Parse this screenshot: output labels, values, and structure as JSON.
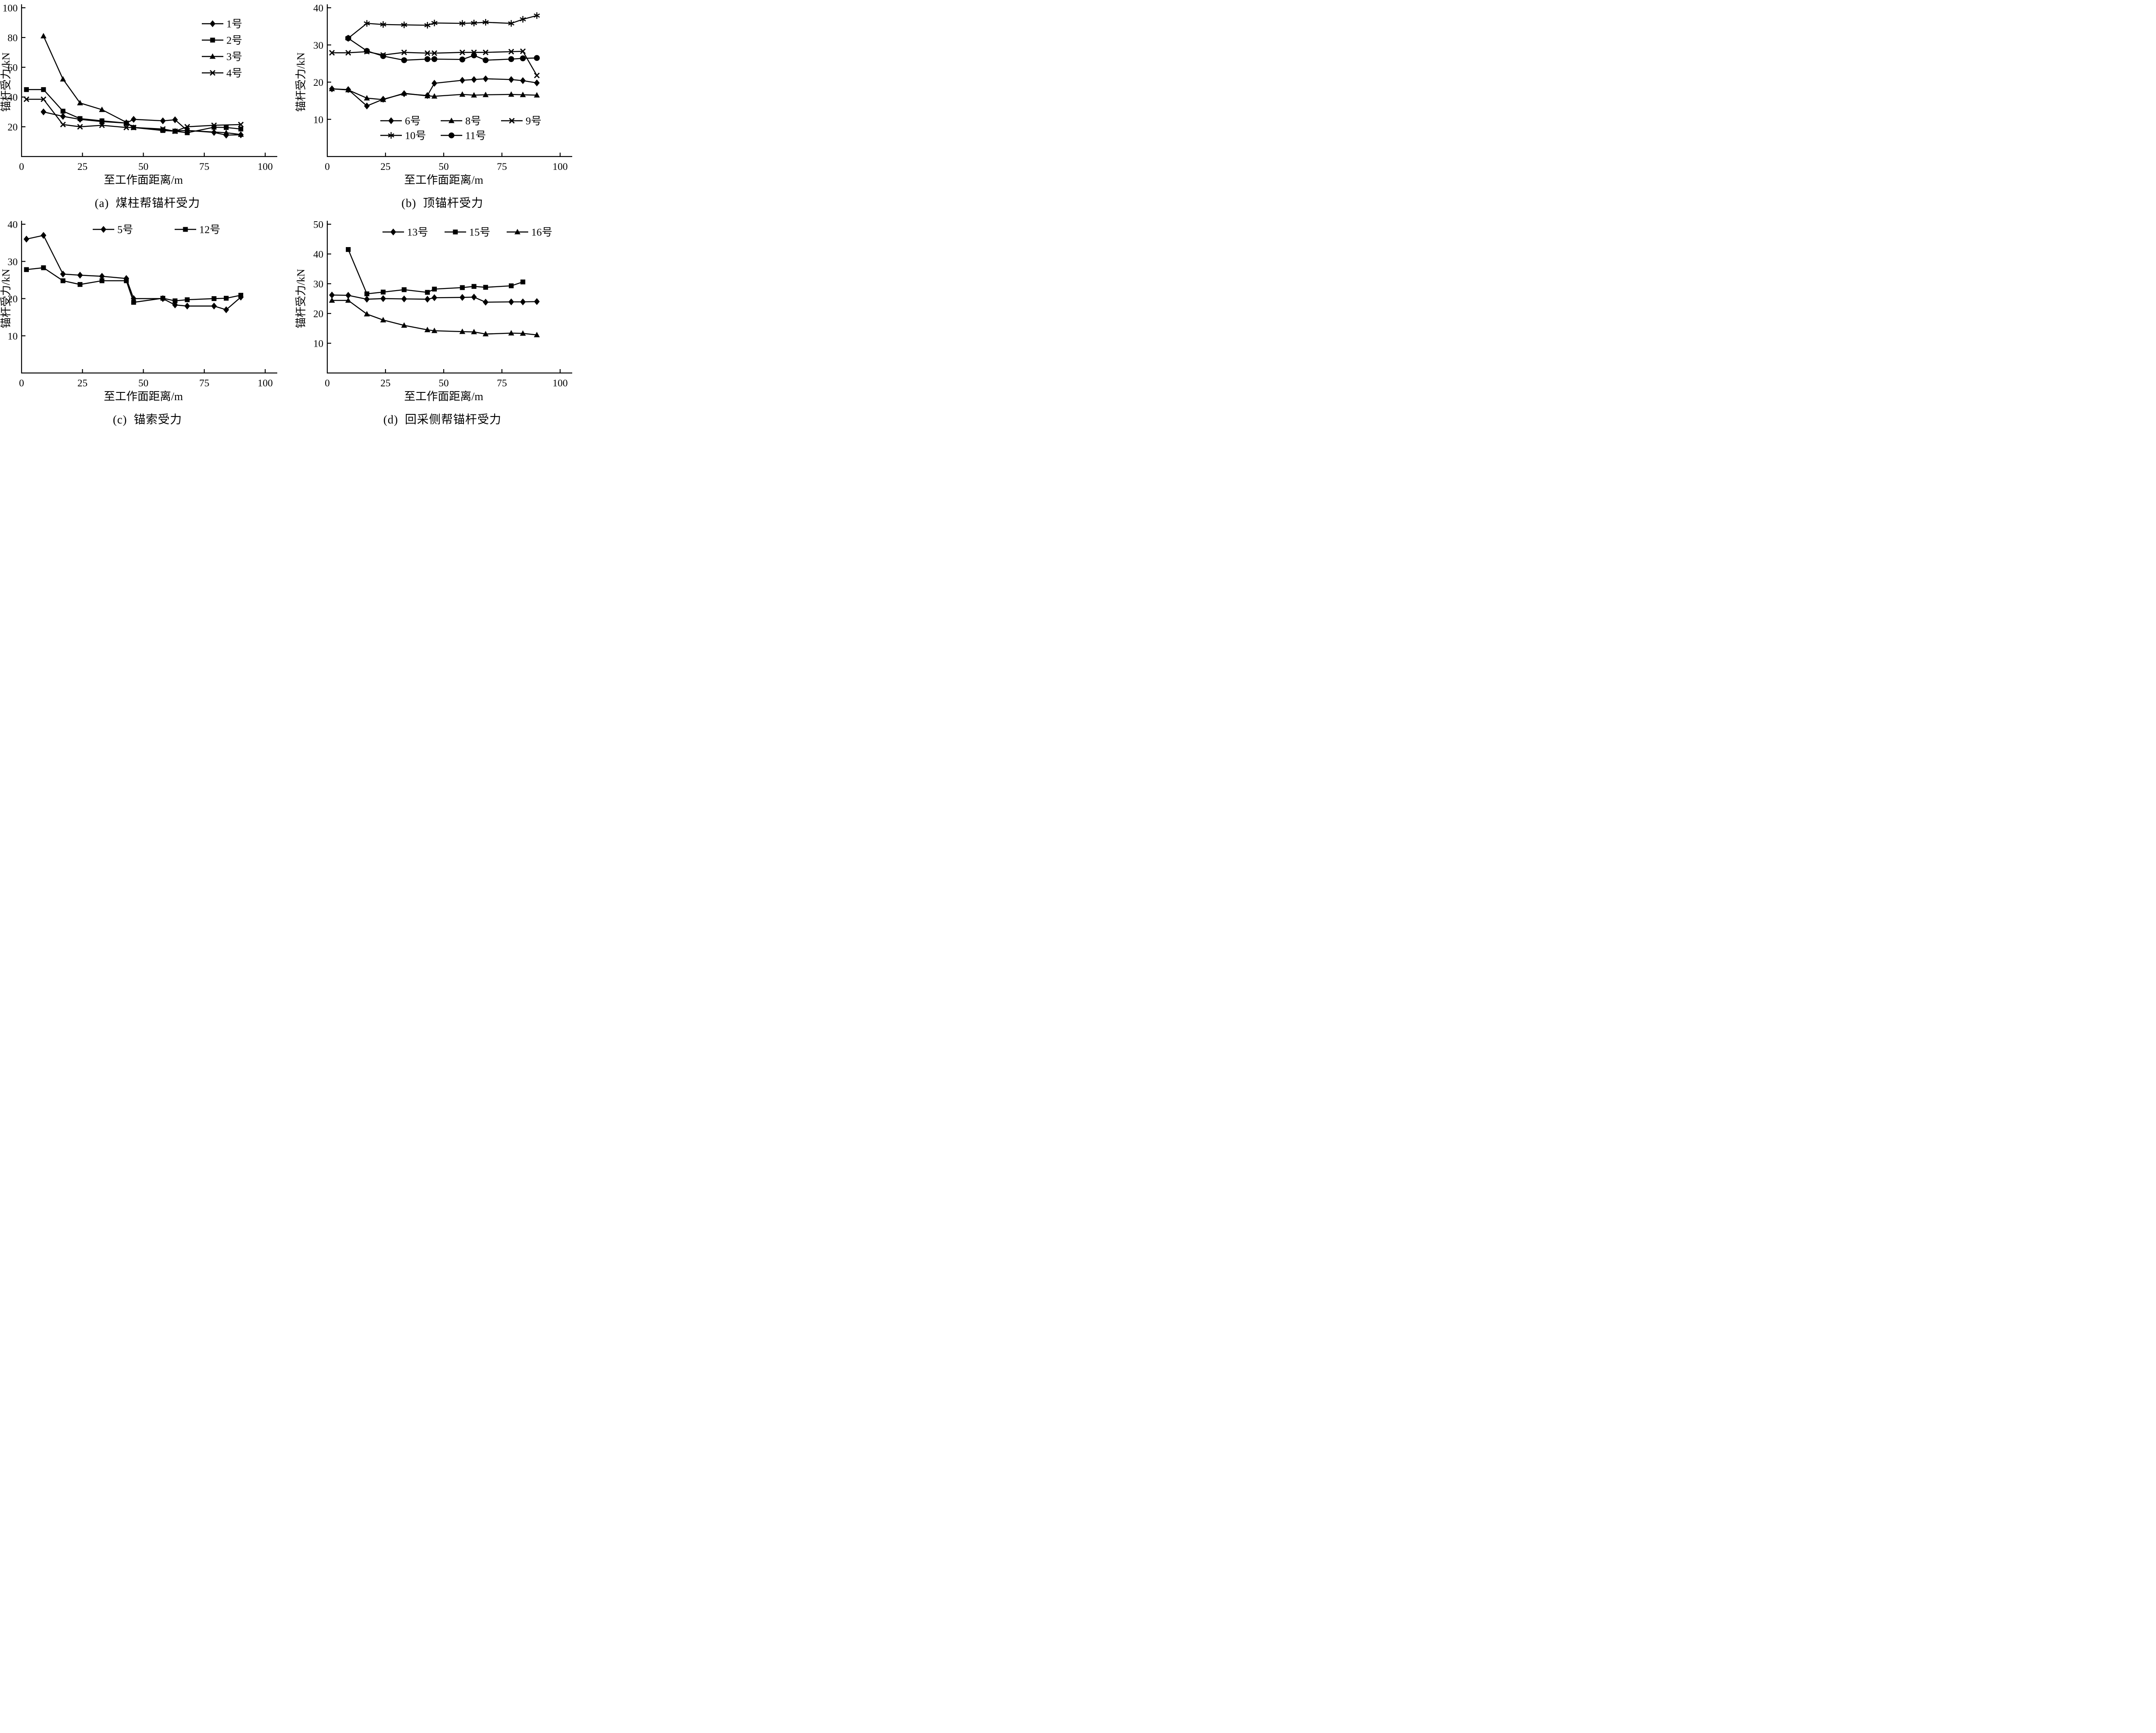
{
  "figure": {
    "background": "#ffffff",
    "ink_color": "#000000"
  },
  "chart_data": [
    {
      "id": "a",
      "type": "line",
      "caption": "(a)  煤柱帮锚杆受力",
      "xlabel": "至工作面距离/m",
      "ylabel": "锚杆受力/kN",
      "xlim": [
        0,
        100
      ],
      "xticks": [
        0,
        25,
        50,
        75,
        100
      ],
      "ylim": [
        0,
        100
      ],
      "yticks": [
        20,
        40,
        60,
        80,
        100
      ],
      "grid": false,
      "legend_position": "upper-right-inside",
      "series": [
        {
          "name": "1号",
          "marker": "diamond",
          "x": [
            9,
            17,
            24,
            33,
            43,
            46,
            58,
            63,
            68,
            79,
            84,
            90
          ],
          "y": [
            30,
            27,
            25,
            23.5,
            22.5,
            25,
            24,
            24.7,
            17.5,
            16.2,
            14.4,
            14.6
          ]
        },
        {
          "name": "2号",
          "marker": "square",
          "x": [
            2,
            9,
            17,
            24,
            33,
            43,
            46,
            58,
            63,
            68,
            79,
            84,
            90
          ],
          "y": [
            45,
            45,
            30.5,
            25.5,
            24,
            22.5,
            19.5,
            17.5,
            17,
            16,
            19.7,
            19.5,
            18.5
          ]
        },
        {
          "name": "3号",
          "marker": "triangle",
          "x": [
            9,
            17,
            24,
            33,
            43,
            46,
            58,
            63,
            68,
            84,
            90
          ],
          "y": [
            81,
            52,
            36,
            31.5,
            23,
            19.5,
            18,
            17.2,
            17.5,
            16,
            14.8
          ]
        },
        {
          "name": "4号",
          "marker": "x",
          "x": [
            2,
            9,
            17,
            24,
            33,
            43,
            46,
            58,
            63,
            68,
            79,
            90
          ],
          "y": [
            38.5,
            38.5,
            21.5,
            20,
            21,
            19.5,
            19.5,
            18.5,
            17,
            20,
            21,
            21.5
          ]
        }
      ]
    },
    {
      "id": "b",
      "type": "line",
      "caption": "(b)  顶锚杆受力",
      "xlabel": "至工作面距离/m",
      "ylabel": "锚杆受力/kN",
      "xlim": [
        0,
        100
      ],
      "xticks": [
        0,
        25,
        50,
        75,
        100
      ],
      "ylim": [
        0,
        40
      ],
      "yticks": [
        10,
        20,
        30,
        40
      ],
      "grid": false,
      "legend_position": "lower-inside-two-rows",
      "series": [
        {
          "name": "6号",
          "marker": "diamond",
          "x": [
            2,
            9,
            17,
            24,
            33,
            43,
            46,
            58,
            63,
            68,
            79,
            84,
            90
          ],
          "y": [
            18.2,
            18,
            13.6,
            15.4,
            16.9,
            16.4,
            19.7,
            20.5,
            20.7,
            20.9,
            20.7,
            20.4,
            19.8
          ]
        },
        {
          "name": "8号",
          "marker": "triangle",
          "x": [
            2,
            9,
            17,
            24,
            33,
            43,
            46,
            58,
            63,
            68,
            79,
            84,
            90
          ],
          "y": [
            18.2,
            17.9,
            15.7,
            15.3,
            17,
            16.3,
            16.2,
            16.7,
            16.5,
            16.6,
            16.7,
            16.6,
            16.5
          ]
        },
        {
          "name": "9号",
          "marker": "x",
          "x": [
            2,
            9,
            17,
            24,
            33,
            43,
            46,
            58,
            63,
            68,
            79,
            84,
            90
          ],
          "y": [
            27.9,
            27.9,
            28.2,
            27.3,
            28,
            27.8,
            27.8,
            28,
            28,
            28,
            28.2,
            28.3,
            21.8
          ]
        },
        {
          "name": "10号",
          "marker": "star",
          "x": [
            9,
            17,
            24,
            33,
            43,
            46,
            58,
            63,
            68,
            79,
            84,
            90
          ],
          "y": [
            31.8,
            35.8,
            35.5,
            35.4,
            35.3,
            35.9,
            35.8,
            35.9,
            36.1,
            35.8,
            36.9,
            37.9
          ]
        },
        {
          "name": "11号",
          "marker": "circle",
          "x": [
            9,
            17,
            24,
            33,
            43,
            46,
            58,
            63,
            68,
            79,
            84,
            90
          ],
          "y": [
            31.8,
            28.4,
            27,
            25.9,
            26.2,
            26.2,
            26.1,
            27.2,
            25.9,
            26.2,
            26.4,
            26.5
          ]
        }
      ]
    },
    {
      "id": "c",
      "type": "line",
      "caption": "(c)  锚索受力",
      "xlabel": "至工作面距离/m",
      "ylabel": "锚杆受力/kN",
      "xlim": [
        0,
        100
      ],
      "xticks": [
        0,
        25,
        50,
        75,
        100
      ],
      "ylim": [
        0,
        40
      ],
      "yticks": [
        10,
        20,
        30,
        40
      ],
      "grid": false,
      "legend_position": "upper-inside-row",
      "series": [
        {
          "name": "5号",
          "marker": "diamond",
          "x": [
            2,
            9,
            17,
            24,
            33,
            43,
            46,
            58,
            63,
            68,
            79,
            84,
            90
          ],
          "y": [
            36,
            37,
            26.6,
            26.3,
            26,
            25.4,
            20,
            20,
            18.3,
            18,
            18,
            17,
            20.4
          ]
        },
        {
          "name": "12号",
          "marker": "square",
          "x": [
            2,
            9,
            17,
            24,
            33,
            43,
            46,
            58,
            63,
            68,
            79,
            84,
            90
          ],
          "y": [
            27.8,
            28.3,
            24.8,
            23.8,
            24.8,
            24.8,
            19,
            20.1,
            19.4,
            19.7,
            20,
            20.1,
            20.9
          ]
        }
      ]
    },
    {
      "id": "d",
      "type": "line",
      "caption": "(d)  回采侧帮锚杆受力",
      "xlabel": "至工作面距离/m",
      "ylabel": "锚杆受力/kN",
      "xlim": [
        0,
        100
      ],
      "xticks": [
        0,
        25,
        50,
        75,
        100
      ],
      "ylim": [
        0,
        50
      ],
      "yticks": [
        10,
        20,
        30,
        40,
        50
      ],
      "grid": false,
      "legend_position": "upper-inside-row",
      "series": [
        {
          "name": "13号",
          "marker": "diamond",
          "x": [
            2,
            9,
            17,
            24,
            33,
            43,
            46,
            58,
            63,
            68,
            79,
            84,
            90
          ],
          "y": [
            26.2,
            26.1,
            24.8,
            25,
            24.9,
            24.8,
            25.3,
            25.4,
            25.5,
            23.8,
            23.9,
            23.9,
            24
          ]
        },
        {
          "name": "15号",
          "marker": "square",
          "x": [
            9,
            17,
            24,
            33,
            43,
            46,
            58,
            63,
            68,
            79,
            84
          ],
          "y": [
            41.5,
            26.6,
            27.2,
            28,
            27.1,
            28.2,
            28.7,
            29.1,
            28.8,
            29.3,
            30.6
          ]
        },
        {
          "name": "16号",
          "marker": "triangle",
          "x": [
            2,
            9,
            17,
            24,
            33,
            43,
            46,
            58,
            63,
            68,
            79,
            84,
            90
          ],
          "y": [
            24.4,
            24.4,
            19.8,
            17.8,
            16,
            14.5,
            14.2,
            13.9,
            13.8,
            13.1,
            13.4,
            13.3,
            12.8
          ]
        }
      ]
    }
  ]
}
